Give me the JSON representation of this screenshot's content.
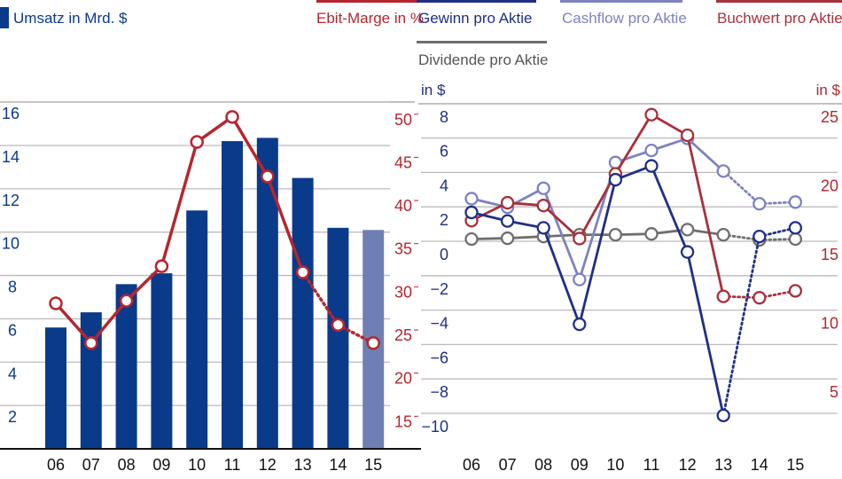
{
  "chart_data": [
    {
      "type": "bar",
      "categories": [
        "06",
        "07",
        "08",
        "09",
        "10",
        "11",
        "12",
        "13",
        "14",
        "15"
      ],
      "projected": [
        "14",
        "15"
      ],
      "series": [
        {
          "name": "Umsatz in Mrd. $",
          "kind": "bar",
          "axis": "left",
          "color": "#0a3a8a",
          "projected_color": "#6f7fb6",
          "values": [
            5.6,
            6.3,
            7.6,
            8.1,
            11.0,
            14.2,
            14.35,
            12.5,
            10.2,
            10.1
          ]
        },
        {
          "name": "Ebit-Marge in %",
          "kind": "line",
          "axis": "right",
          "color": "#b5262e",
          "values": [
            28.7,
            24.1,
            29.0,
            33.0,
            47.4,
            50.3,
            43.4,
            32.3,
            26.2,
            24.1
          ]
        }
      ],
      "left_axis": {
        "ticks": [
          2,
          4,
          6,
          8,
          10,
          12,
          14,
          16
        ],
        "range": [
          0,
          16
        ],
        "color": "#0a3a8a"
      },
      "right_axis": {
        "ticks": [
          15,
          20,
          25,
          30,
          35,
          40,
          45,
          50
        ],
        "color": "#b5262e"
      },
      "grid": true
    },
    {
      "type": "line",
      "categories": [
        "06",
        "07",
        "08",
        "09",
        "10",
        "11",
        "12",
        "13",
        "14",
        "15"
      ],
      "projected": [
        "14",
        "15"
      ],
      "left_axis": {
        "label": "in $",
        "ticks": [
          8,
          6,
          4,
          2,
          0,
          -2,
          -4,
          -6,
          -8,
          -10
        ],
        "range": [
          -10,
          8
        ],
        "color": "#1f2f86"
      },
      "right_axis": {
        "label": "in $",
        "ticks": [
          25,
          20,
          15,
          10,
          5
        ],
        "color": "#b5262e"
      },
      "grid": true,
      "series": [
        {
          "name": "Dividende pro Aktie",
          "axis": "left",
          "color": "#6e6e6e",
          "values": [
            0.85,
            0.9,
            1.0,
            1.1,
            1.1,
            1.15,
            1.4,
            1.1,
            0.8,
            0.85
          ]
        },
        {
          "name": "Cashflow pro Aktie",
          "axis": "left",
          "color": "#7c83c0",
          "values": [
            3.2,
            2.7,
            3.8,
            -1.5,
            5.3,
            6.0,
            6.7,
            4.8,
            2.9,
            3.0
          ]
        },
        {
          "name": "Buchwert pro Aktie",
          "axis": "right",
          "color": "#a8303a",
          "values": [
            17.4,
            18.7,
            18.5,
            16.1,
            20.8,
            25.1,
            23.6,
            11.9,
            11.8,
            12.3
          ]
        },
        {
          "name": "Gewinn pro Aktie",
          "axis": "left",
          "color": "#1f2f86",
          "values": [
            2.4,
            1.9,
            1.5,
            -4.1,
            4.3,
            5.1,
            0.1,
            -9.4,
            1.0,
            1.5
          ]
        }
      ]
    }
  ],
  "legend": {
    "umsatz": "Umsatz in Mrd. $",
    "ebit": "Ebit-Marge in %",
    "gewinn": "Gewinn pro Aktie",
    "cashflow": "Cashflow pro Aktie",
    "buchwert": "Buchwert pro Aktie",
    "dividende": "Dividende pro Aktie"
  }
}
